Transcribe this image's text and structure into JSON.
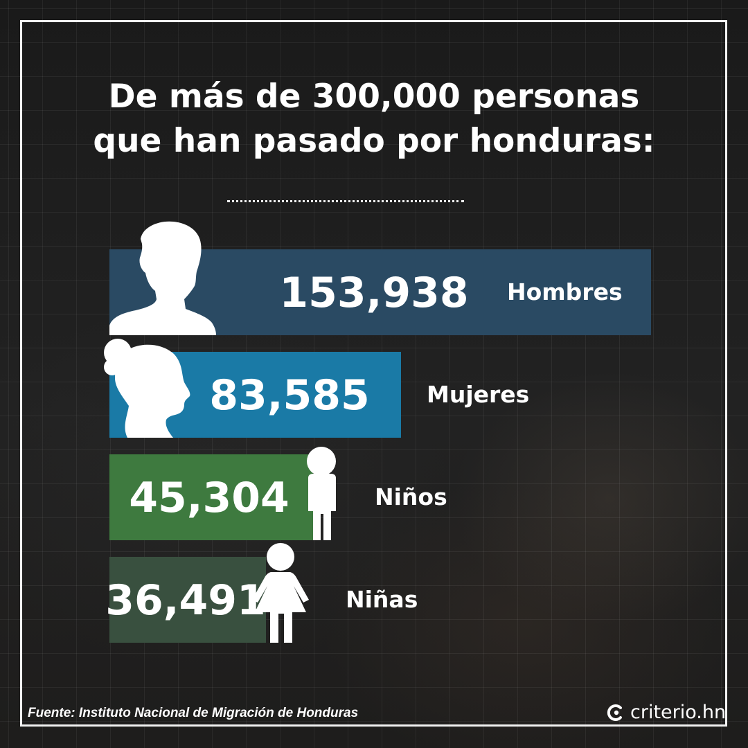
{
  "title_line1": "De más de 300,000 personas",
  "title_line2": "que han pasado por honduras:",
  "chart_data": {
    "type": "bar",
    "orientation": "horizontal",
    "categories": [
      "Hombres",
      "Mujeres",
      "Niños",
      "Niñas"
    ],
    "values": [
      153938,
      83585,
      45304,
      36491
    ],
    "value_labels": [
      "153,938",
      "83,585",
      "45,304",
      "36,491"
    ],
    "colors": [
      "#2a4a63",
      "#1a7aa6",
      "#3e7a3f",
      "#39503f"
    ],
    "icons": [
      "man-silhouette-icon",
      "woman-silhouette-icon",
      "boy-figure-icon",
      "girl-figure-icon"
    ]
  },
  "source": "Fuente: Instituto Nacional de Migración de Honduras",
  "brand": "criterio.hn"
}
